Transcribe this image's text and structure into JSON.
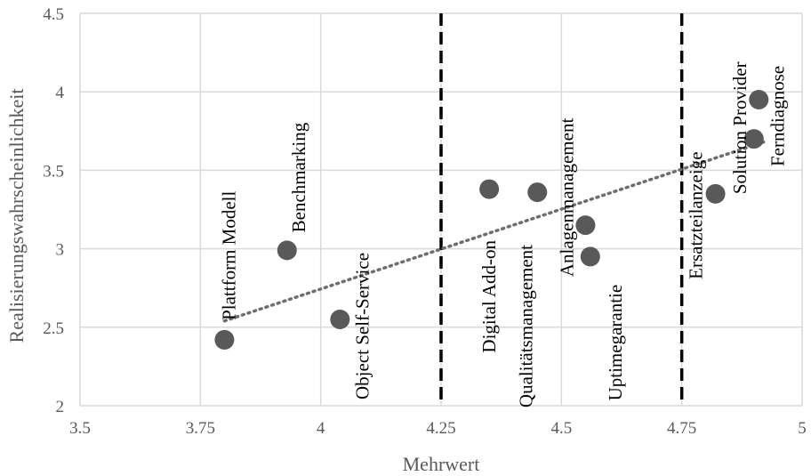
{
  "chart_data": {
    "type": "scatter",
    "xlabel": "Mehrwert",
    "ylabel": "Realisierungswahrscheinlichkeit",
    "xlim": [
      3.5,
      5
    ],
    "ylim": [
      2,
      4.5
    ],
    "x_ticks": [
      "3.5",
      "3.75",
      "4",
      "4.25",
      "4.5",
      "4.75",
      "5"
    ],
    "y_ticks": [
      "2",
      "2.5",
      "3",
      "3.5",
      "4",
      "4.5"
    ],
    "grid": true,
    "vertical_reference_lines": [
      4.25,
      4.75
    ],
    "trendline": {
      "style": "dotted",
      "from": [
        3.8,
        2.54
      ],
      "to": [
        4.92,
        3.68
      ]
    },
    "point_color": "#595959",
    "points": [
      {
        "label": "Plattform Modell",
        "x": 3.8,
        "y": 2.42
      },
      {
        "label": "Benchmarking",
        "x": 3.93,
        "y": 2.99
      },
      {
        "label": "Object Self-Service",
        "x": 4.04,
        "y": 2.55
      },
      {
        "label": "Digital Add-on",
        "x": 4.35,
        "y": 3.38
      },
      {
        "label": "Qualitätsmanagement",
        "x": 4.45,
        "y": 3.36
      },
      {
        "label": "Anlagenmanagement",
        "x": 4.55,
        "y": 3.15
      },
      {
        "label": "Uptimegarantie",
        "x": 4.56,
        "y": 2.95
      },
      {
        "label": "Ersatzteilanzeige",
        "x": 4.82,
        "y": 3.35
      },
      {
        "label": "Solution Provider",
        "x": 4.9,
        "y": 3.7
      },
      {
        "label": "Ferndiagnose",
        "x": 4.91,
        "y": 3.95
      }
    ]
  }
}
